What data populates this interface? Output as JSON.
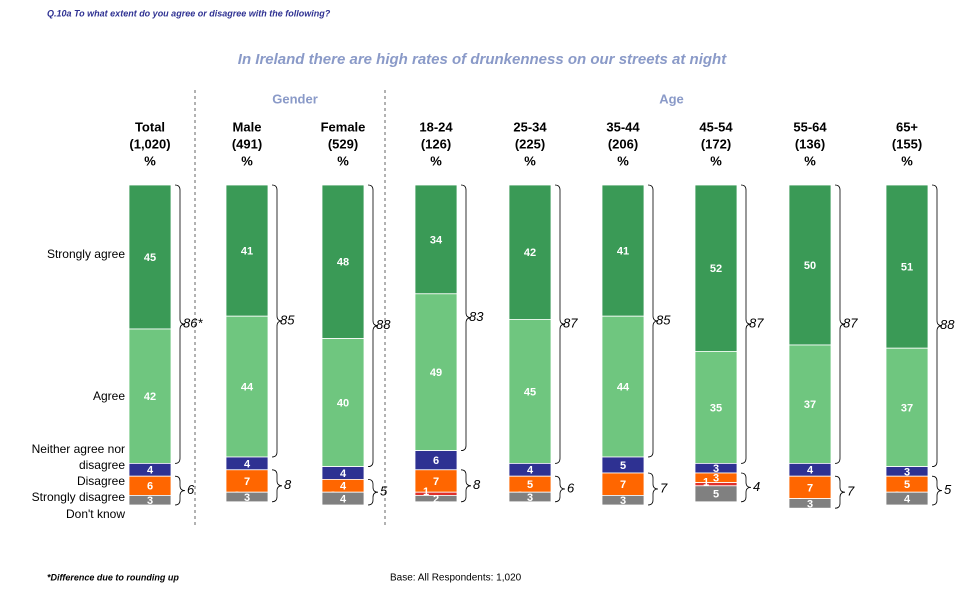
{
  "chart_data": {
    "type": "stacked_bar",
    "question": "Q.10a   To what extent do you agree or disagree with the following?",
    "title": "In Ireland there are high rates of drunkenness on our streets at night",
    "groups": [
      {
        "name": "Gender",
        "from": 1,
        "to": 2
      },
      {
        "name": "Age",
        "from": 3,
        "to": 8
      }
    ],
    "categories": [
      "Total",
      "Male",
      "Female",
      "18-24",
      "25-34",
      "35-44",
      "45-54",
      "55-64",
      "65+"
    ],
    "bases": [
      "(1,020)",
      "(491)",
      "(529)",
      "(126)",
      "(225)",
      "(206)",
      "(172)",
      "(136)",
      "(155)"
    ],
    "unit_label": "%",
    "series": [
      {
        "name": "Strongly agree",
        "color": "#3a9a56",
        "values": [
          45,
          41,
          48,
          34,
          42,
          41,
          52,
          50,
          51
        ]
      },
      {
        "name": "Agree",
        "color": "#6fc67f",
        "values": [
          42,
          44,
          40,
          49,
          45,
          44,
          35,
          37,
          37
        ]
      },
      {
        "name": "Neither agree nor disagree",
        "color": "#2e3192",
        "values": [
          4,
          4,
          4,
          6,
          4,
          5,
          3,
          4,
          3
        ]
      },
      {
        "name": "Disagree",
        "color": "#ff6600",
        "values": [
          6,
          7,
          4,
          7,
          5,
          7,
          3,
          7,
          5
        ]
      },
      {
        "name": "Strongly disagree",
        "color": "#e0302a",
        "values": [
          0,
          0,
          0,
          1,
          0,
          0,
          1,
          0,
          0
        ],
        "value_labels": [
          "-",
          "-",
          "-",
          "1",
          "-",
          "-",
          "1",
          "-",
          "-"
        ]
      },
      {
        "name": "Don't know",
        "color": "#808080",
        "values": [
          3,
          3,
          4,
          2,
          3,
          3,
          5,
          3,
          4
        ]
      }
    ],
    "net_agree": {
      "values": [
        86,
        85,
        88,
        83,
        87,
        85,
        87,
        87,
        88
      ],
      "value_labels": [
        "86*",
        "85",
        "88",
        "83",
        "87",
        "85",
        "87",
        "87",
        "88"
      ]
    },
    "net_disagree": {
      "values": [
        6,
        8,
        5,
        8,
        6,
        7,
        4,
        7,
        5
      ]
    },
    "footnote": "*Difference due to rounding up",
    "base_note": "Base:  All Respondents:  1,020"
  }
}
